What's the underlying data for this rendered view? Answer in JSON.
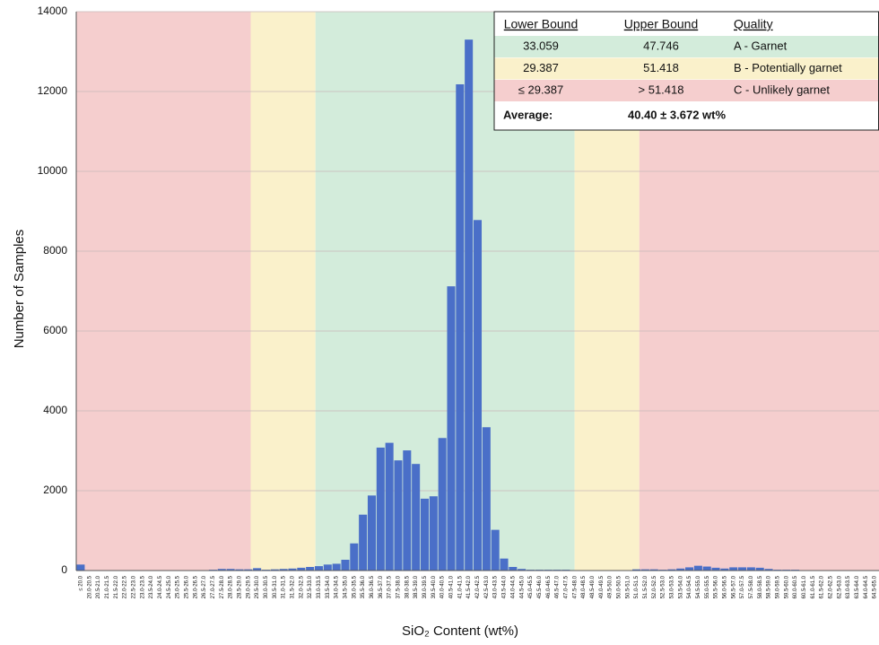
{
  "chart_data": {
    "type": "bar",
    "ylabel": "Number of Samples",
    "xlabel": "SiO₂ Content (wt%)",
    "color": "#4a6fc8",
    "ylim": [
      0,
      14000
    ],
    "yticks": [
      0,
      2000,
      4000,
      6000,
      8000,
      10000,
      12000,
      14000
    ],
    "grid": true,
    "categories": [
      "≤ 20.0",
      "20.0-20.5",
      "20.5-21.0",
      "21.0-21.5",
      "21.5-22.0",
      "22.0-22.5",
      "22.5-23.0",
      "23.0-23.5",
      "23.5-24.0",
      "24.0-24.5",
      "24.5-25.0",
      "25.0-25.5",
      "25.5-26.0",
      "26.0-26.5",
      "26.5-27.0",
      "27.0-27.5",
      "27.5-28.0",
      "28.0-28.5",
      "28.5-29.0",
      "29.0-29.5",
      "29.5-30.0",
      "30.0-30.5",
      "30.5-31.0",
      "31.0-31.5",
      "31.5-32.0",
      "32.0-32.5",
      "32.5-33.0",
      "33.0-33.5",
      "33.5-34.0",
      "34.0-34.5",
      "34.5-35.0",
      "35.0-35.5",
      "35.5-36.0",
      "36.0-36.5",
      "36.5-37.0",
      "37.0-37.5",
      "37.5-38.0",
      "38.0-38.5",
      "38.5-39.0",
      "39.0-39.5",
      "39.5-40.0",
      "40.0-40.5",
      "40.5-41.0",
      "41.0-41.5",
      "41.5-42.0",
      "42.0-42.5",
      "42.5-43.0",
      "43.0-43.5",
      "43.5-44.0",
      "44.0-44.5",
      "44.5-45.0",
      "45.0-45.5",
      "45.5-46.0",
      "46.0-46.5",
      "46.5-47.0",
      "47.0-47.5",
      "47.5-48.0",
      "48.0-48.5",
      "48.5-49.0",
      "49.0-49.5",
      "49.5-50.0",
      "50.0-50.5",
      "50.5-51.0",
      "51.0-51.5",
      "51.5-52.0",
      "52.0-52.5",
      "52.5-53.0",
      "53.0-53.5",
      "53.5-54.0",
      "54.0-54.5",
      "54.5-55.0",
      "55.0-55.5",
      "55.5-56.0",
      "56.0-56.5",
      "56.5-57.0",
      "57.0-57.5",
      "57.5-58.0",
      "58.0-58.5",
      "58.5-59.0",
      "59.0-59.5",
      "59.5-60.0",
      "60.0-60.5",
      "60.5-61.0",
      "61.0-61.5",
      "61.5-62.0",
      "62.0-62.5",
      "62.5-63.0",
      "63.0-63.5",
      "63.5-64.0",
      "64.0-64.5",
      "64.5-65.0"
    ],
    "values": [
      150,
      10,
      10,
      10,
      10,
      10,
      10,
      10,
      10,
      10,
      10,
      10,
      10,
      10,
      10,
      20,
      40,
      40,
      30,
      30,
      60,
      20,
      30,
      40,
      50,
      70,
      90,
      110,
      150,
      170,
      270,
      680,
      1400,
      1880,
      3080,
      3200,
      2760,
      3010,
      2670,
      1800,
      1860,
      3320,
      7120,
      12180,
      13300,
      8780,
      3590,
      1020,
      300,
      90,
      40,
      20,
      20,
      20,
      20,
      20,
      10,
      10,
      10,
      10,
      10,
      10,
      10,
      30,
      30,
      30,
      20,
      30,
      50,
      80,
      120,
      100,
      70,
      50,
      80,
      80,
      80,
      70,
      40,
      20,
      20,
      20,
      10,
      10,
      10,
      10,
      10,
      10,
      10,
      10,
      10
    ],
    "table": {
      "headers": [
        "Lower Bound",
        "Upper Bound",
        "Quality"
      ],
      "row_colors": [
        "#d3ecdb",
        "#faf1cb",
        "#f5cece"
      ],
      "rows": [
        [
          33.059,
          47.746,
          "A - Garnet"
        ],
        [
          29.387,
          51.418,
          "B - Potentially garnet"
        ],
        [
          "≤ 29.387",
          "> 51.418",
          "C - Unlikely garnet"
        ]
      ],
      "average_label": "Average:",
      "average": "40.40 ± 3.672 wt%"
    }
  }
}
